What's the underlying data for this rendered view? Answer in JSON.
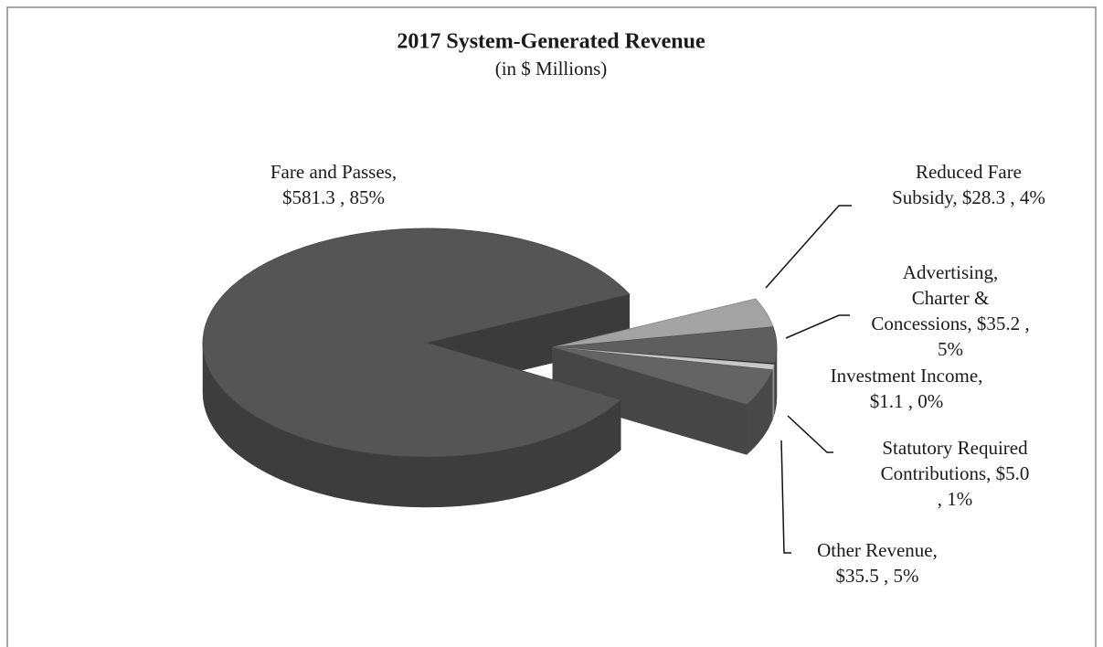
{
  "chart_data": {
    "type": "pie",
    "title": "2017 System-Generated Revenue",
    "subtitle": "(in $ Millions)",
    "values": [
      581.3,
      28.3,
      35.2,
      1.1,
      5.0,
      35.5
    ],
    "value_labels": [
      [
        "Fare and Passes,",
        "$581.3 , 85%"
      ],
      [
        "Reduced Fare",
        "Subsidy, $28.3 , 4%"
      ],
      [
        "Advertising,",
        "Charter &",
        "Concessions, $35.2 ,",
        "5%"
      ],
      [
        "Investment Income,",
        "$1.1 , 0%"
      ],
      [
        "Statutory Required",
        "Contributions, $5.0",
        ", 1%"
      ],
      [
        "Other Revenue,",
        "$35.5 , 5%"
      ]
    ],
    "colors": [
      "#555555",
      "#a3a3a3",
      "#5e5e5e",
      "#2e2e2e",
      "#c9c9c9",
      "#646464"
    ]
  }
}
